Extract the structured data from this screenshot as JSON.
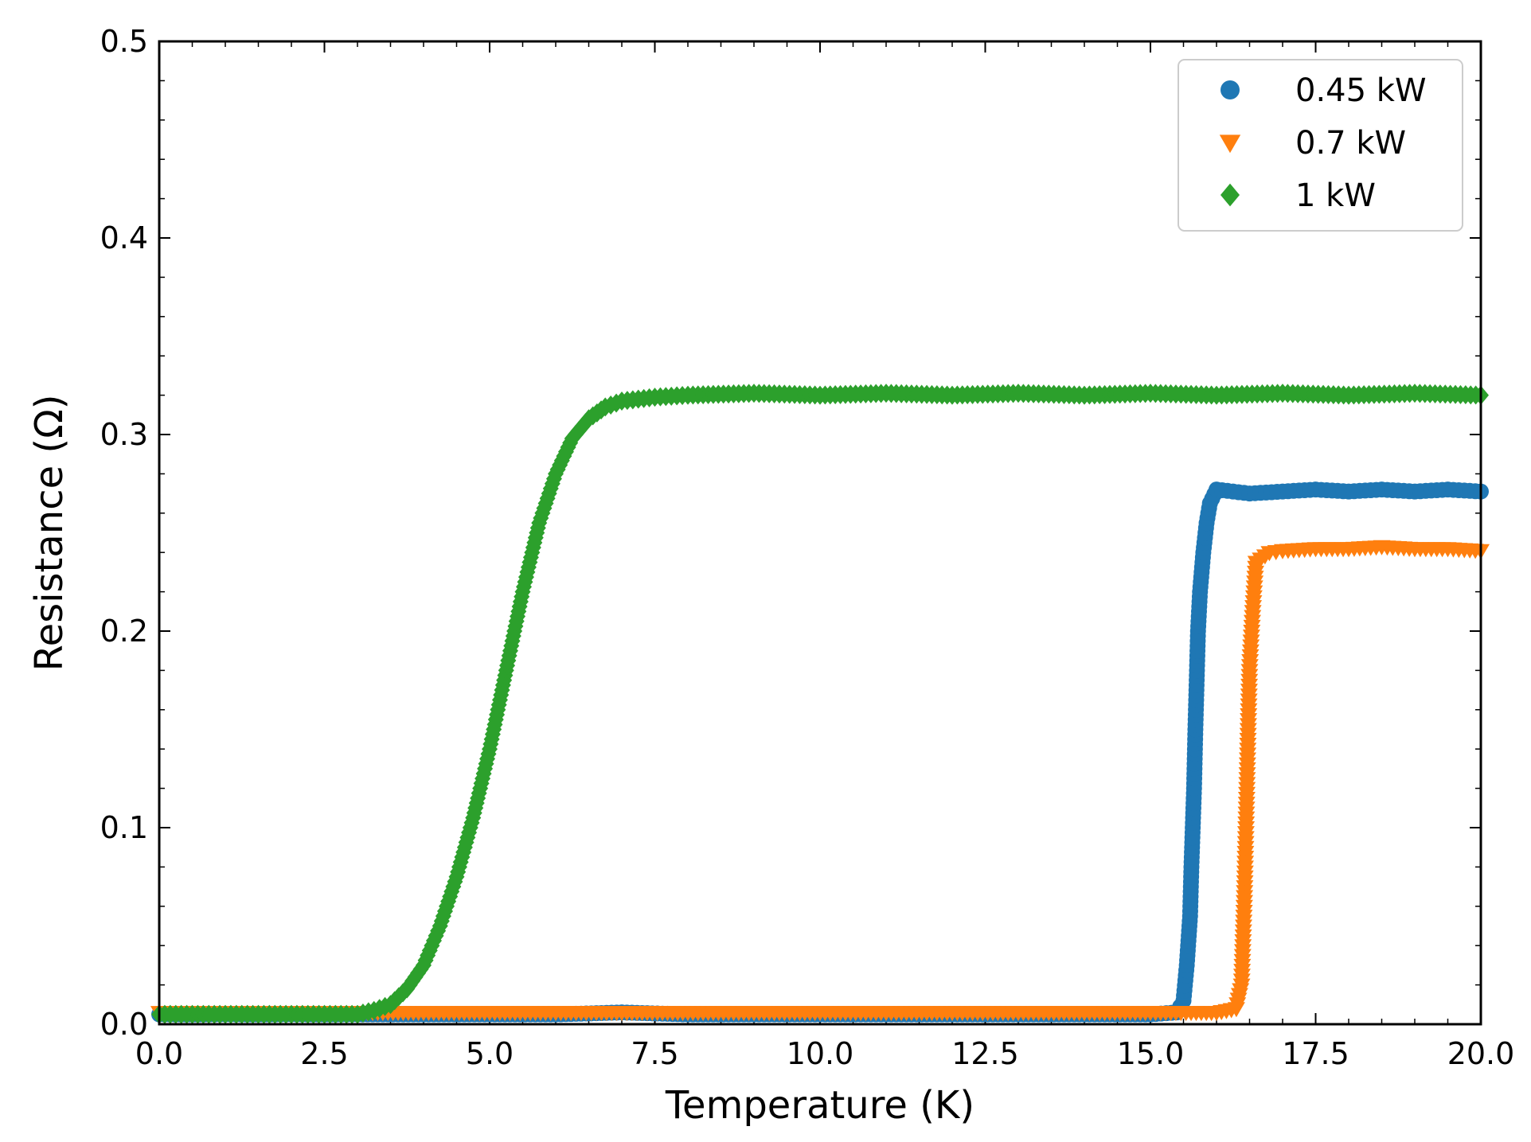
{
  "chart_data": {
    "type": "scatter",
    "xlabel": "Temperature (K)",
    "ylabel": "Resistance (Ω)",
    "xlim": [
      0,
      20
    ],
    "ylim": [
      0,
      0.5
    ],
    "xticks": [
      0,
      2.5,
      5,
      7.5,
      10,
      12.5,
      15,
      17.5,
      20
    ],
    "xtick_labels": [
      "0.0",
      "2.5",
      "5.0",
      "7.5",
      "10.0",
      "12.5",
      "15.0",
      "17.5",
      "20.0"
    ],
    "yticks": [
      0,
      0.1,
      0.2,
      0.3,
      0.4,
      0.5
    ],
    "ytick_labels": [
      "0.0",
      "0.1",
      "0.2",
      "0.3",
      "0.4",
      "0.5"
    ],
    "grid": false,
    "legend_position": "top-right",
    "series": [
      {
        "name": "0.45 kW",
        "color": "#1f77b4",
        "marker": "circle",
        "x": [
          0,
          1,
          2,
          3,
          4,
          5,
          6,
          7,
          8,
          9,
          10,
          11,
          12,
          13,
          14,
          15,
          15.4,
          15.5,
          15.55,
          15.6,
          15.62,
          15.64,
          15.66,
          15.68,
          15.7,
          15.72,
          15.75,
          15.8,
          15.85,
          15.9,
          16,
          16.5,
          17,
          17.5,
          18,
          18.5,
          19,
          19.5,
          20
        ],
        "y": [
          0.005,
          0.005,
          0.005,
          0.005,
          0.005,
          0.005,
          0.005,
          0.006,
          0.005,
          0.005,
          0.005,
          0.005,
          0.005,
          0.005,
          0.005,
          0.005,
          0.006,
          0.012,
          0.03,
          0.055,
          0.08,
          0.1,
          0.12,
          0.15,
          0.175,
          0.2,
          0.22,
          0.24,
          0.255,
          0.265,
          0.272,
          0.27,
          0.271,
          0.272,
          0.271,
          0.272,
          0.271,
          0.272,
          0.271
        ]
      },
      {
        "name": "0.7 kW",
        "color": "#ff7f0e",
        "marker": "triangle-down",
        "x": [
          0,
          1,
          2,
          3,
          4,
          5,
          6,
          7,
          8,
          9,
          10,
          11,
          12,
          13,
          14,
          15,
          16,
          16.3,
          16.38,
          16.4,
          16.42,
          16.44,
          16.46,
          16.48,
          16.5,
          16.55,
          16.6,
          16.8,
          17,
          17.5,
          18,
          18.5,
          19,
          19.5,
          20
        ],
        "y": [
          0.006,
          0.006,
          0.006,
          0.006,
          0.006,
          0.006,
          0.006,
          0.006,
          0.006,
          0.006,
          0.006,
          0.006,
          0.006,
          0.006,
          0.006,
          0.006,
          0.006,
          0.008,
          0.02,
          0.04,
          0.06,
          0.09,
          0.12,
          0.15,
          0.18,
          0.21,
          0.235,
          0.24,
          0.241,
          0.242,
          0.242,
          0.243,
          0.242,
          0.242,
          0.241
        ]
      },
      {
        "name": "1 kW",
        "color": "#2ca02c",
        "marker": "diamond",
        "x": [
          0,
          0.5,
          1,
          1.5,
          2,
          2.5,
          3,
          3.25,
          3.5,
          3.75,
          4,
          4.25,
          4.5,
          4.75,
          5,
          5.25,
          5.5,
          5.75,
          6,
          6.25,
          6.5,
          6.75,
          7,
          7.25,
          7.5,
          8,
          9,
          10,
          11,
          12,
          13,
          14,
          15,
          16,
          17,
          18,
          19,
          20
        ],
        "y": [
          0.005,
          0.005,
          0.005,
          0.005,
          0.005,
          0.005,
          0.005,
          0.007,
          0.01,
          0.018,
          0.03,
          0.05,
          0.075,
          0.105,
          0.14,
          0.18,
          0.22,
          0.255,
          0.28,
          0.298,
          0.308,
          0.314,
          0.317,
          0.318,
          0.319,
          0.32,
          0.321,
          0.32,
          0.321,
          0.32,
          0.321,
          0.32,
          0.321,
          0.32,
          0.321,
          0.32,
          0.321,
          0.32
        ]
      }
    ]
  }
}
